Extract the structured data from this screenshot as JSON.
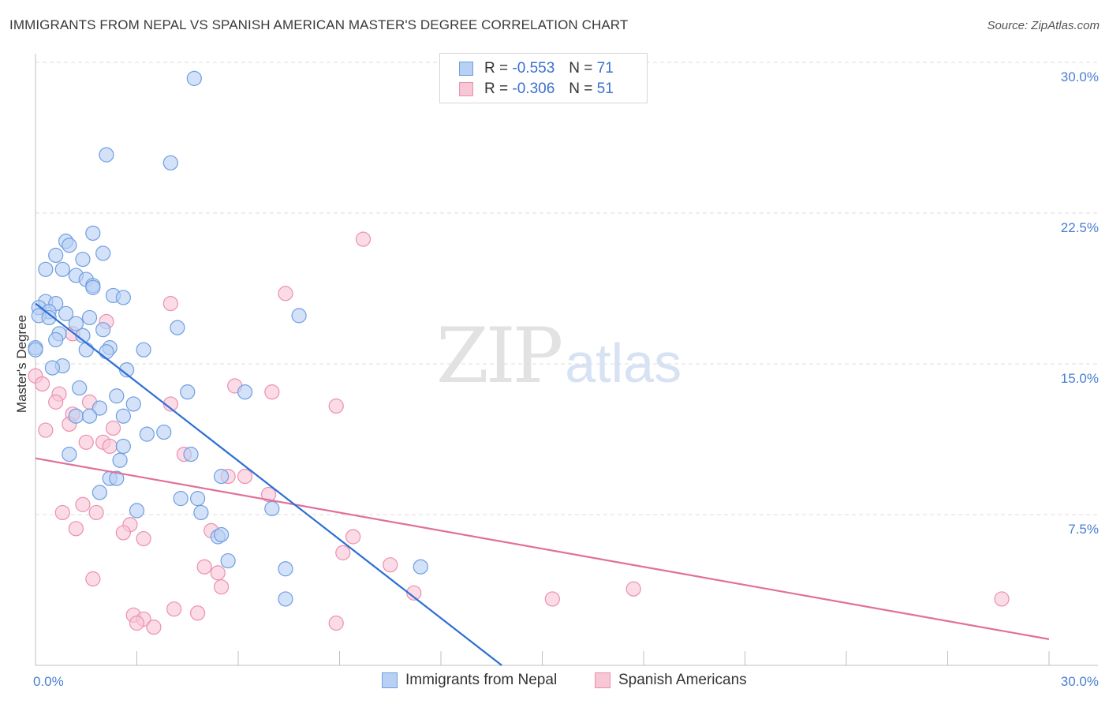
{
  "title": "IMMIGRANTS FROM NEPAL VS SPANISH AMERICAN MASTER'S DEGREE CORRELATION CHART",
  "source": "Source: ZipAtlas.com",
  "watermark": {
    "zip": "ZIP",
    "atlas": "atlas"
  },
  "legend": {
    "nepal": {
      "r_label": "R =",
      "r_value": "-0.553",
      "n_label": "N =",
      "n_value": "71"
    },
    "spanish": {
      "r_label": "R =",
      "r_value": "-0.306",
      "n_label": "N =",
      "n_value": "51"
    }
  },
  "bottom_legend": {
    "nepal": "Immigrants from Nepal",
    "spanish": "Spanish Americans"
  },
  "chart_data": {
    "type": "scatter",
    "ylabel": "Master's Degree",
    "xlim": [
      0,
      30
    ],
    "ylim": [
      0,
      30
    ],
    "x_tick_labels": [
      "0.0%",
      "30.0%"
    ],
    "y_ticks": [
      7.5,
      15.0,
      22.5,
      30.0
    ],
    "y_tick_labels": [
      "7.5%",
      "15.0%",
      "22.5%",
      "30.0%"
    ],
    "grid": "horizontal dashed",
    "colors": {
      "nepal_fill": "#b8d0f3",
      "nepal_stroke": "#6f9ee0",
      "nepal_line": "#2c6fd4",
      "spanish_fill": "#f8c7d6",
      "spanish_stroke": "#ec8fae",
      "spanish_line": "#e0709a"
    },
    "series": [
      {
        "name": "Immigrants from Nepal",
        "trend": [
          [
            0,
            18.0
          ],
          [
            13.8,
            0
          ]
        ],
        "points": [
          [
            4.7,
            29.2
          ],
          [
            2.1,
            25.4
          ],
          [
            4.0,
            25.0
          ],
          [
            1.7,
            21.5
          ],
          [
            0.9,
            21.1
          ],
          [
            1.0,
            20.9
          ],
          [
            0.6,
            20.4
          ],
          [
            2.0,
            20.5
          ],
          [
            1.4,
            20.2
          ],
          [
            0.3,
            19.7
          ],
          [
            0.8,
            19.7
          ],
          [
            1.2,
            19.4
          ],
          [
            1.5,
            19.2
          ],
          [
            1.7,
            18.9
          ],
          [
            1.7,
            18.8
          ],
          [
            2.3,
            18.4
          ],
          [
            2.6,
            18.3
          ],
          [
            0.3,
            18.1
          ],
          [
            0.6,
            18.0
          ],
          [
            0.1,
            17.8
          ],
          [
            0.4,
            17.6
          ],
          [
            0.9,
            17.5
          ],
          [
            0.1,
            17.4
          ],
          [
            0.4,
            17.3
          ],
          [
            1.6,
            17.3
          ],
          [
            7.8,
            17.4
          ],
          [
            1.2,
            17.0
          ],
          [
            4.2,
            16.8
          ],
          [
            2.0,
            16.7
          ],
          [
            0.7,
            16.5
          ],
          [
            1.4,
            16.4
          ],
          [
            0.6,
            16.2
          ],
          [
            0.0,
            15.8
          ],
          [
            2.2,
            15.8
          ],
          [
            1.5,
            15.7
          ],
          [
            2.1,
            15.6
          ],
          [
            3.2,
            15.7
          ],
          [
            0.8,
            14.9
          ],
          [
            0.5,
            14.8
          ],
          [
            2.7,
            14.7
          ],
          [
            1.3,
            13.8
          ],
          [
            4.5,
            13.6
          ],
          [
            6.2,
            13.6
          ],
          [
            2.4,
            13.4
          ],
          [
            2.9,
            13.0
          ],
          [
            1.9,
            12.8
          ],
          [
            1.2,
            12.4
          ],
          [
            1.6,
            12.4
          ],
          [
            2.6,
            12.4
          ],
          [
            3.3,
            11.5
          ],
          [
            3.8,
            11.6
          ],
          [
            2.6,
            10.9
          ],
          [
            1.0,
            10.5
          ],
          [
            4.6,
            10.5
          ],
          [
            2.5,
            10.2
          ],
          [
            5.5,
            9.4
          ],
          [
            2.2,
            9.3
          ],
          [
            2.4,
            9.3
          ],
          [
            1.9,
            8.6
          ],
          [
            4.3,
            8.3
          ],
          [
            4.8,
            8.3
          ],
          [
            3.0,
            7.7
          ],
          [
            7.0,
            7.8
          ],
          [
            4.9,
            7.6
          ],
          [
            5.4,
            6.4
          ],
          [
            5.5,
            6.5
          ],
          [
            5.7,
            5.2
          ],
          [
            7.4,
            4.8
          ],
          [
            11.4,
            4.9
          ],
          [
            7.4,
            3.3
          ],
          [
            0.0,
            15.7
          ]
        ]
      },
      {
        "name": "Spanish Americans",
        "trend": [
          [
            0,
            10.3
          ],
          [
            30,
            1.3
          ]
        ],
        "points": [
          [
            9.7,
            21.2
          ],
          [
            7.4,
            18.5
          ],
          [
            4.0,
            18.0
          ],
          [
            2.1,
            17.1
          ],
          [
            1.1,
            16.5
          ],
          [
            0.0,
            14.4
          ],
          [
            0.2,
            14.0
          ],
          [
            5.9,
            13.9
          ],
          [
            7.0,
            13.6
          ],
          [
            0.7,
            13.5
          ],
          [
            0.6,
            13.1
          ],
          [
            1.6,
            13.1
          ],
          [
            4.0,
            13.0
          ],
          [
            8.9,
            12.9
          ],
          [
            1.1,
            12.5
          ],
          [
            1.0,
            12.0
          ],
          [
            2.3,
            11.8
          ],
          [
            0.3,
            11.7
          ],
          [
            1.5,
            11.1
          ],
          [
            2.0,
            11.1
          ],
          [
            2.2,
            10.9
          ],
          [
            4.4,
            10.5
          ],
          [
            5.7,
            9.4
          ],
          [
            6.2,
            9.4
          ],
          [
            6.9,
            8.5
          ],
          [
            1.4,
            8.0
          ],
          [
            0.8,
            7.6
          ],
          [
            1.8,
            7.6
          ],
          [
            2.8,
            7.0
          ],
          [
            1.2,
            6.8
          ],
          [
            5.2,
            6.7
          ],
          [
            2.6,
            6.6
          ],
          [
            3.2,
            6.3
          ],
          [
            9.4,
            6.4
          ],
          [
            9.1,
            5.6
          ],
          [
            10.5,
            5.0
          ],
          [
            5.0,
            4.9
          ],
          [
            5.4,
            4.6
          ],
          [
            1.7,
            4.3
          ],
          [
            5.5,
            3.9
          ],
          [
            11.2,
            3.6
          ],
          [
            17.7,
            3.8
          ],
          [
            15.3,
            3.3
          ],
          [
            28.6,
            3.3
          ],
          [
            4.1,
            2.8
          ],
          [
            4.8,
            2.6
          ],
          [
            2.9,
            2.5
          ],
          [
            3.2,
            2.3
          ],
          [
            3.0,
            2.1
          ],
          [
            8.9,
            2.1
          ],
          [
            3.5,
            1.9
          ]
        ]
      }
    ]
  }
}
